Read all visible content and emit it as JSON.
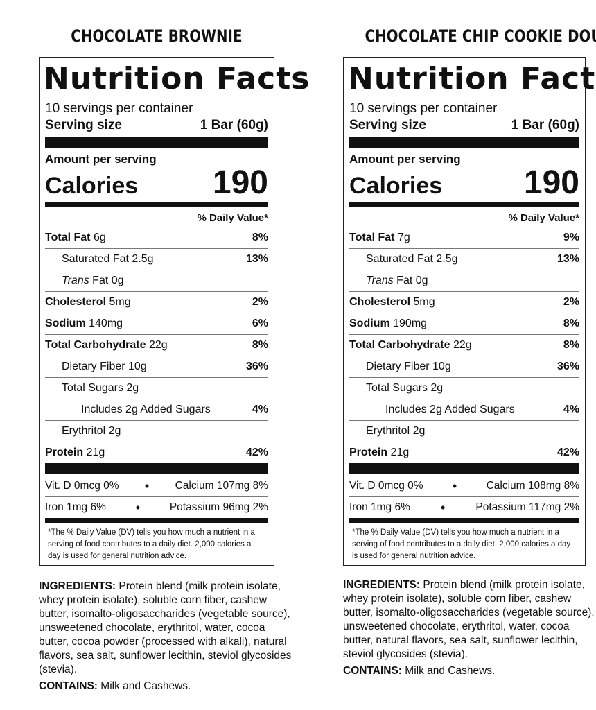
{
  "panels": [
    {
      "flavor": "CHOCOLATE BROWNIE",
      "title": "Nutrition Facts",
      "servings": "10 servings per container",
      "serving_size_label": "Serving size",
      "serving_size_value": "1 Bar (60g)",
      "amount_label": "Amount per serving",
      "calories_label": "Calories",
      "calories_value": "190",
      "dv_header": "% Daily Value*",
      "nutrients": {
        "total_fat": {
          "label": "Total Fat",
          "amount": "6g",
          "dv": "8%"
        },
        "sat_fat": {
          "label": "Saturated Fat",
          "amount": "2.5g",
          "dv": "13%"
        },
        "trans_fat": {
          "label_italic": "Trans",
          "label": "Fat",
          "amount": "0g"
        },
        "cholesterol": {
          "label": "Cholesterol",
          "amount": "5mg",
          "dv": "2%"
        },
        "sodium": {
          "label": "Sodium",
          "amount": "140mg",
          "dv": "6%"
        },
        "carbs": {
          "label": "Total Carbohydrate",
          "amount": "22g",
          "dv": "8%"
        },
        "fiber": {
          "label": "Dietary Fiber",
          "amount": "10g",
          "dv": "36%"
        },
        "sugars": {
          "label": "Total Sugars",
          "amount": "2g"
        },
        "added_sugars": {
          "label": "Includes 2g Added Sugars",
          "dv": "4%"
        },
        "erythritol": {
          "label": "Erythritol",
          "amount": "2g"
        },
        "protein": {
          "label": "Protein",
          "amount": "21g",
          "dv": "42%"
        }
      },
      "vitd": "Vit. D 0mcg 0%",
      "calcium": "Calcium 107mg 8%",
      "iron": "Iron 1mg 6%",
      "potassium": "Potassium 96mg 2%",
      "bullet": "•",
      "footnote": "*The % Daily Value (DV) tells you how much a nutrient in a serving of food contributes to a daily diet. 2,000 calories a day is used for general nutrition advice.",
      "ingredients_label": "INGREDIENTS:",
      "ingredients": "Protein blend (milk protein isolate, whey protein isolate), soluble corn fiber, cashew butter, isomalto-oligosaccharides (vegetable source), unsweetened chocolate, erythritol, water, cocoa butter, cocoa powder (processed with alkali), natural flavors, sea salt, sunflower lecithin, steviol glycosides (stevia).",
      "contains_label": "CONTAINS:",
      "contains": "Milk and Cashews."
    },
    {
      "flavor": "CHOCOLATE CHIP COOKIE DOUGH",
      "title": "Nutrition Facts",
      "servings": "10 servings per container",
      "serving_size_label": "Serving size",
      "serving_size_value": "1 Bar (60g)",
      "amount_label": "Amount per serving",
      "calories_label": "Calories",
      "calories_value": "190",
      "dv_header": "% Daily Value*",
      "nutrients": {
        "total_fat": {
          "label": "Total Fat",
          "amount": "7g",
          "dv": "9%"
        },
        "sat_fat": {
          "label": "Saturated Fat",
          "amount": "2.5g",
          "dv": "13%"
        },
        "trans_fat": {
          "label_italic": "Trans",
          "label": "Fat",
          "amount": "0g"
        },
        "cholesterol": {
          "label": "Cholesterol",
          "amount": "5mg",
          "dv": "2%"
        },
        "sodium": {
          "label": "Sodium",
          "amount": "190mg",
          "dv": "8%"
        },
        "carbs": {
          "label": "Total Carbohydrate",
          "amount": "22g",
          "dv": "8%"
        },
        "fiber": {
          "label": "Dietary Fiber",
          "amount": "10g",
          "dv": "36%"
        },
        "sugars": {
          "label": "Total Sugars",
          "amount": "2g"
        },
        "added_sugars": {
          "label": "Includes 2g Added Sugars",
          "dv": "4%"
        },
        "erythritol": {
          "label": "Erythritol",
          "amount": "2g"
        },
        "protein": {
          "label": "Protein",
          "amount": "21g",
          "dv": "42%"
        }
      },
      "vitd": "Vit. D 0mcg 0%",
      "calcium": "Calcium 108mg 8%",
      "iron": "Iron 1mg 6%",
      "potassium": "Potassium 117mg 2%",
      "bullet": "•",
      "footnote": "*The % Daily Value (DV) tells you how much a nutrient in a serving of food contributes to a daily diet. 2,000 calories a day is used for general nutrition advice.",
      "ingredients_label": "INGREDIENTS:",
      "ingredients": "Protein blend (milk protein isolate, whey protein isolate), soluble corn fiber, cashew butter, isomalto-oligosaccharides (vegetable source), unsweetened chocolate, erythritol, water, cocoa butter, natural flavors, sea salt, sunflower lecithin, steviol glycosides (stevia).",
      "contains_label": "CONTAINS:",
      "contains": "Milk and Cashews."
    }
  ]
}
